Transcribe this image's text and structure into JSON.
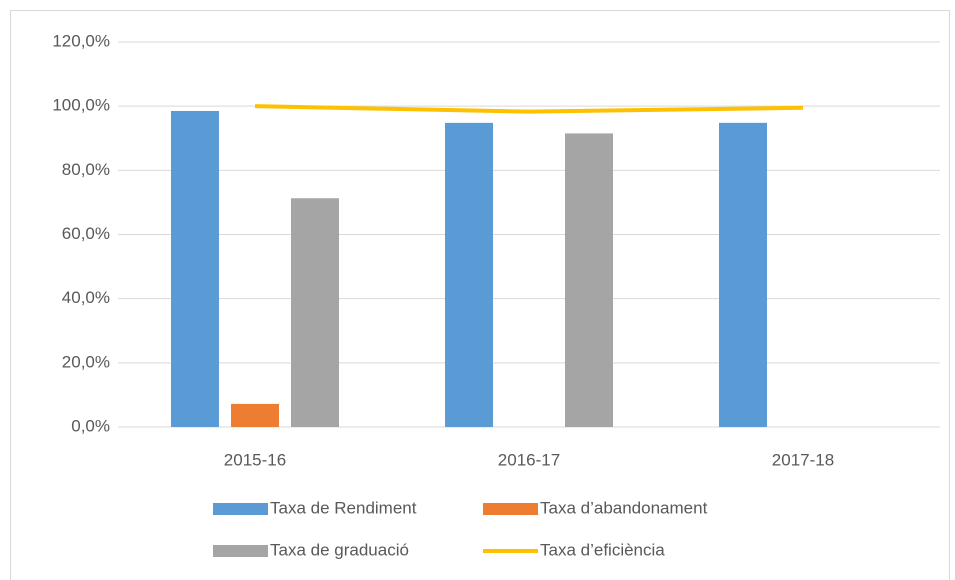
{
  "chart_data": {
    "type": "bar",
    "categories": [
      "2015-16",
      "2016-17",
      "2017-18"
    ],
    "series": [
      {
        "name": "Taxa de Rendiment",
        "color": "#5b9bd5",
        "values": [
          98.5,
          94.8,
          94.8
        ]
      },
      {
        "name": "Taxa d’abandonament",
        "color": "#ed7d31",
        "values": [
          7.2,
          null,
          null
        ]
      },
      {
        "name": "Taxa de graduació",
        "color": "#a5a5a5",
        "values": [
          71.3,
          91.5,
          null
        ]
      },
      {
        "name": "Taxa d’eficiència",
        "color": "#ffc000",
        "type": "line",
        "values": [
          100.0,
          98.3,
          99.5
        ]
      }
    ],
    "ylim": [
      0,
      120
    ],
    "yticks": [
      {
        "value": 0,
        "label": "0,0%"
      },
      {
        "value": 20,
        "label": "20,0%"
      },
      {
        "value": 40,
        "label": "40,0%"
      },
      {
        "value": 60,
        "label": "60,0%"
      },
      {
        "value": 80,
        "label": "80,0%"
      },
      {
        "value": 100,
        "label": "100,0%"
      },
      {
        "value": 120,
        "label": "120,0%"
      }
    ],
    "grid": true,
    "legend": "bottom"
  }
}
